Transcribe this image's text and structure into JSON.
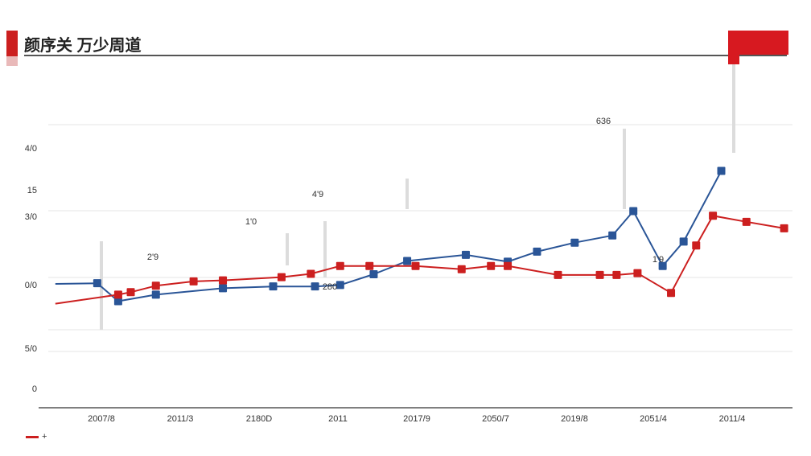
{
  "title": "颜序关 万少周道",
  "colors": {
    "series_blue": "#2a5597",
    "series_red": "#cc1f1f",
    "grid": "#e6e6e6",
    "axis": "#555555",
    "accent": "#d71920"
  },
  "legend": {
    "mark": "+"
  },
  "chart_data": {
    "type": "line",
    "title": "颜序关 万少周道",
    "xlabel": "",
    "ylabel": "",
    "categories": [
      "2007/8",
      "2011/3",
      "2180D",
      "2011",
      "2017/9",
      "2050/7",
      "2019/8",
      "2051/4",
      "2011/4"
    ],
    "y_ticks": [
      "0",
      "5/0",
      "0/0",
      "3/0",
      "15",
      "4/0"
    ],
    "ylim": [
      0,
      8
    ],
    "grid": true,
    "legend_position": "bottom-left",
    "series": [
      {
        "x": [
          0.2,
          0.7,
          0.95,
          1.4,
          2.2,
          2.8,
          3.3,
          3.6,
          4.0,
          4.4,
          5.1,
          5.6,
          5.95,
          6.4,
          6.85,
          7.1,
          7.45,
          7.7,
          8.15
        ],
        "values": [
          3.45,
          3.47,
          2.97,
          3.15,
          3.33,
          3.38,
          3.38,
          3.42,
          3.72,
          4.09,
          4.26,
          4.07,
          4.35,
          4.6,
          4.8,
          5.48,
          3.95,
          4.63,
          6.6
        ]
      },
      {
        "x": [
          0.2,
          0.95,
          1.1,
          1.4,
          1.85,
          2.2,
          2.9,
          3.25,
          3.6,
          3.95,
          4.5,
          5.05,
          5.4,
          5.6,
          6.2,
          6.7,
          6.9,
          7.15,
          7.55,
          7.85,
          8.05,
          8.45,
          8.9
        ],
        "values": [
          2.9,
          3.15,
          3.22,
          3.4,
          3.52,
          3.55,
          3.64,
          3.73,
          3.95,
          3.95,
          3.95,
          3.86,
          3.95,
          3.95,
          3.7,
          3.7,
          3.7,
          3.75,
          3.2,
          4.52,
          5.35,
          5.18,
          5.0
        ]
      }
    ],
    "annotations": [
      "4'9",
      "1'0",
      "2'9",
      "280",
      "636",
      "1'9"
    ]
  }
}
